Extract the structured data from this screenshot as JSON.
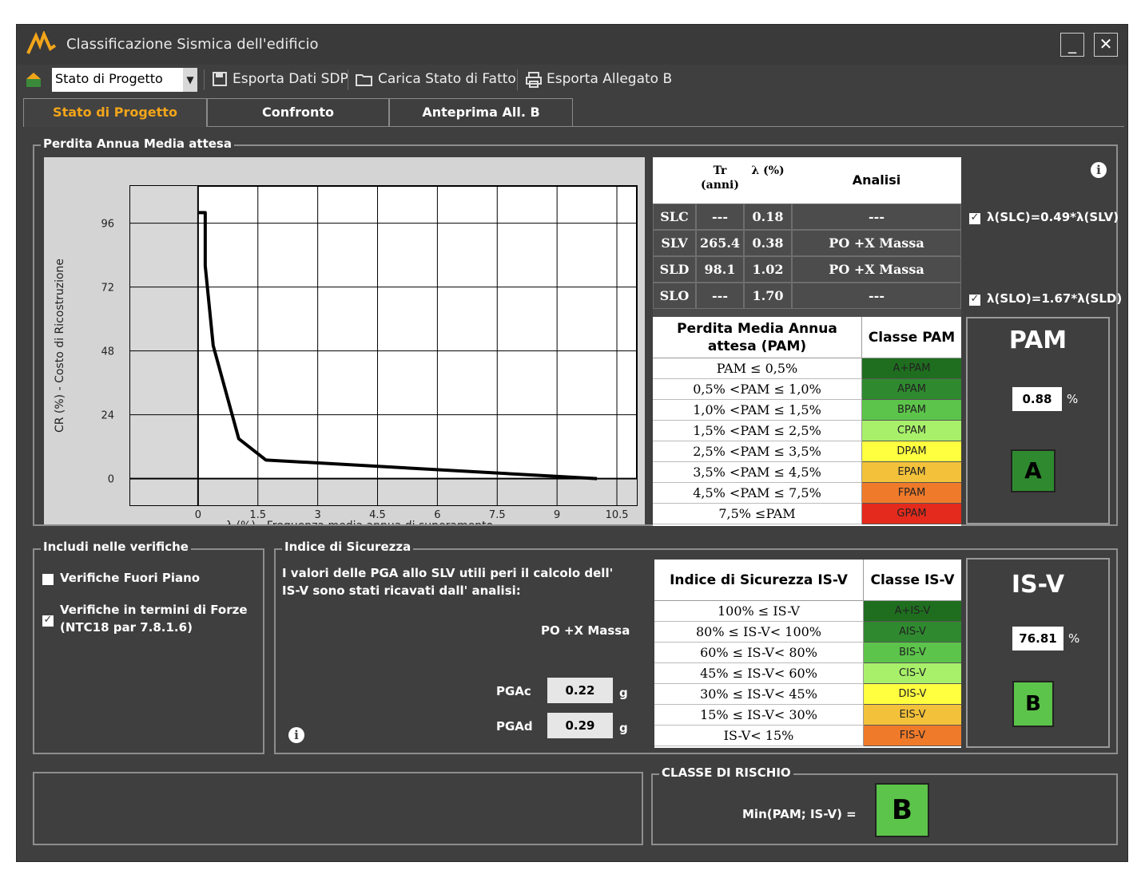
{
  "window": {
    "title": "Classificazione Sismica dell'edificio",
    "minimize_label": "_",
    "close_label": "✕"
  },
  "toolbar": {
    "state_select_value": "Stato di Progetto",
    "export_sdp_label": "Esporta Dati SDP",
    "load_state_label": "Carica Stato di Fatto",
    "export_attachment_label": "Esporta Allegato B"
  },
  "tabs": [
    {
      "label": "Stato di Progetto"
    },
    {
      "label": "Confronto"
    },
    {
      "label": "Anteprima All. B"
    }
  ],
  "pam_group": {
    "title": "Perdita Annua Media attesa"
  },
  "chart_data": {
    "type": "line",
    "xlabel": "λ (%) - Frequenza media annua di superamento",
    "ylabel": "CR (%) - Costo di Ricostruzione",
    "x_ticks": [
      "0",
      "1.5",
      "3",
      "4.5",
      "6",
      "7.5",
      "9",
      "10.5"
    ],
    "y_ticks": [
      "96",
      "72",
      "48",
      "24",
      "0"
    ],
    "xlim": [
      -1.7,
      11.0
    ],
    "ylim": [
      -10,
      110
    ],
    "grid": true,
    "series": [
      {
        "x": [
          0,
          0.18,
          0.18,
          0.38,
          1.02,
          1.7,
          10.0
        ],
        "y": [
          100,
          100,
          80,
          50,
          15,
          7,
          0
        ]
      }
    ]
  },
  "states_table": {
    "headers": {
      "tr": "Tr (anni)",
      "lambda": "λ (%)",
      "analysis": "Analisi"
    },
    "rows": [
      {
        "state": "SLC",
        "tr": "---",
        "lambda": "0.18",
        "analysis": "---"
      },
      {
        "state": "SLV",
        "tr": "265.4",
        "lambda": "0.38",
        "analysis": "PO  +X Massa"
      },
      {
        "state": "SLD",
        "tr": "98.1",
        "lambda": "1.02",
        "analysis": "PO  +X Massa"
      },
      {
        "state": "SLO",
        "tr": "---",
        "lambda": "1.70",
        "analysis": "---"
      }
    ],
    "check_slc": "λ(SLC)=0.49*λ(SLV)",
    "check_slo": "λ(SLO)=1.67*λ(SLD)"
  },
  "pam_table": {
    "header_range": "Perdita Media Annua attesa (PAM)",
    "header_class": "Classe PAM",
    "rows": [
      {
        "range": "PAM ≤ 0,5%",
        "class": "A+PAM",
        "color": "#1f6e1f"
      },
      {
        "range": "0,5% <PAM ≤ 1,0%",
        "class": "APAM",
        "color": "#2f8a2f"
      },
      {
        "range": "1,0% <PAM ≤ 1,5%",
        "class": "BPAM",
        "color": "#5cc44a"
      },
      {
        "range": "1,5% <PAM ≤ 2,5%",
        "class": "CPAM",
        "color": "#a8f06a"
      },
      {
        "range": "2,5% <PAM ≤ 3,5%",
        "class": "DPAM",
        "color": "#ffff40"
      },
      {
        "range": "3,5% <PAM ≤ 4,5%",
        "class": "EPAM",
        "color": "#f3c23a"
      },
      {
        "range": "4,5% <PAM ≤ 7,5%",
        "class": "FPAM",
        "color": "#ef7a2a"
      },
      {
        "range": "7,5% ≤PAM",
        "class": "GPAM",
        "color": "#e42a1c"
      }
    ]
  },
  "pam_result": {
    "title": "PAM",
    "value": "0.88",
    "unit": "%",
    "class": "A",
    "class_color": "#2f8a2f"
  },
  "includes_group": {
    "title": "Includi nelle verifiche",
    "items": [
      {
        "label": "Verifiche Fuori Piano",
        "checked": false
      },
      {
        "label": "Verifiche in termini di Forze (NTC18 par 7.8.1.6)",
        "checked": true
      }
    ]
  },
  "safety_group": {
    "title": "Indice di Sicurezza",
    "description": "I valori delle PGA allo SLV utili peri il calcolo dell' IS-V sono stati ricavati dall' analisi:",
    "analysis": "PO  +X Massa",
    "pgac_label": "PGAc",
    "pgac_value": "0.22",
    "pgad_label": "PGAd",
    "pgad_value": "0.29",
    "unit": "g"
  },
  "isv_table": {
    "header_range": "Indice di Sicurezza IS-V",
    "header_class": "Classe IS-V",
    "rows": [
      {
        "range": "100% ≤ IS-V",
        "class": "A+IS-V",
        "color": "#1f6e1f"
      },
      {
        "range": "80% ≤ IS-V< 100%",
        "class": "AIS-V",
        "color": "#2f8a2f"
      },
      {
        "range": "60% ≤ IS-V< 80%",
        "class": "BIS-V",
        "color": "#5cc44a"
      },
      {
        "range": "45% ≤ IS-V< 60%",
        "class": "CIS-V",
        "color": "#a8f06a"
      },
      {
        "range": "30% ≤ IS-V< 45%",
        "class": "DIS-V",
        "color": "#ffff40"
      },
      {
        "range": "15% ≤ IS-V< 30%",
        "class": "EIS-V",
        "color": "#f3c23a"
      },
      {
        "range": "IS-V< 15%",
        "class": "FIS-V",
        "color": "#ef7a2a"
      }
    ]
  },
  "isv_result": {
    "title": "IS-V",
    "value": "76.81",
    "unit": "%",
    "class": "B",
    "class_color": "#5cc44a"
  },
  "risk_group": {
    "title": "CLASSE DI RISCHIO",
    "label": "Min(PAM; IS-V) =",
    "class": "B",
    "class_color": "#5cc44a"
  }
}
